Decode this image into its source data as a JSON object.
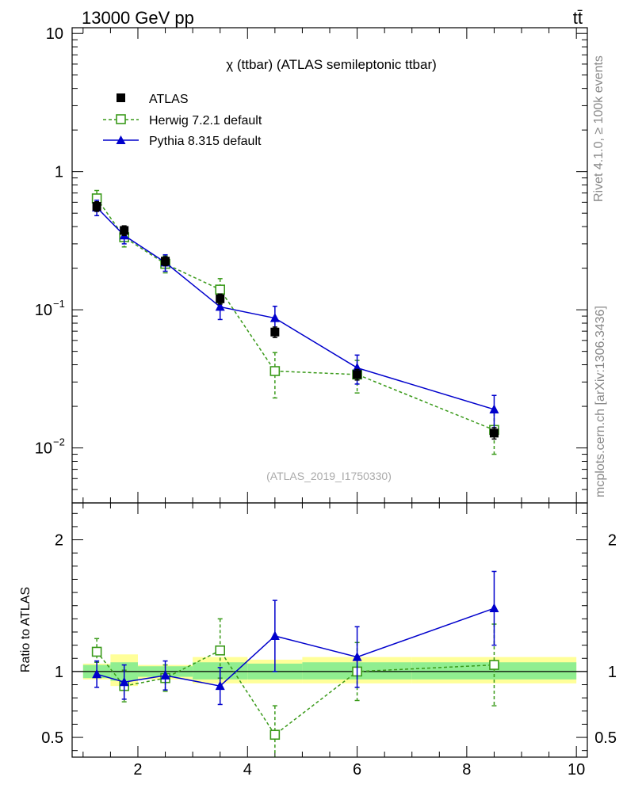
{
  "header": {
    "energy_label": "13000 GeV pp",
    "process_label": "tt̄"
  },
  "side_labels": {
    "rivet": "Rivet 4.1.0, ≥ 100k events",
    "mcplots": "mcplots.cern.ch [arXiv:1306.3436]"
  },
  "analysis_id": "(ATLAS_2019_I1750330)",
  "colors": {
    "atlas": "#000000",
    "herwig": "#3a9a1a",
    "pythia": "#0000cc",
    "band_green": "#90ee90",
    "band_yellow": "#ffff99"
  },
  "chart_data": [
    {
      "type": "line",
      "title": "χ (ttbar) (ATLAS semileptonic ttbar)",
      "xlabel": "",
      "ylabel": "",
      "yscale": "log",
      "xlim": [
        0.8,
        10.2
      ],
      "ylim": [
        0.004,
        11
      ],
      "y_ticks": [
        {
          "value": 10,
          "label": "10"
        },
        {
          "value": 1,
          "label": "1"
        },
        {
          "value": 0.1,
          "label": "10",
          "exp": "−1"
        },
        {
          "value": 0.01,
          "label": "10",
          "exp": "−2"
        }
      ],
      "legend": {
        "position": "top-left",
        "entries": [
          {
            "series": "atlas",
            "label": "ATLAS"
          },
          {
            "series": "herwig",
            "label": "Herwig 7.2.1 default"
          },
          {
            "series": "pythia",
            "label": "Pythia 8.315 default"
          }
        ]
      },
      "series": [
        {
          "key": "atlas",
          "name": "ATLAS",
          "style": "markers",
          "marker": "filled-square",
          "x": [
            1.25,
            1.75,
            2.5,
            3.5,
            4.5,
            6.0,
            8.5
          ],
          "y": [
            0.56,
            0.375,
            0.225,
            0.12,
            0.069,
            0.034,
            0.0128
          ],
          "err": [
            0.045,
            0.03,
            0.017,
            0.01,
            0.006,
            0.003,
            0.0012
          ]
        },
        {
          "key": "herwig",
          "name": "Herwig 7.2.1 default",
          "style": "dashed",
          "marker": "open-square",
          "x": [
            1.25,
            1.75,
            2.5,
            3.5,
            4.5,
            6.0,
            8.5
          ],
          "y": [
            0.64,
            0.335,
            0.215,
            0.14,
            0.036,
            0.034,
            0.0135
          ],
          "err": [
            0.09,
            0.05,
            0.03,
            0.028,
            0.013,
            0.009,
            0.0045
          ]
        },
        {
          "key": "pythia",
          "name": "Pythia 8.315 default",
          "style": "solid",
          "marker": "filled-triangle",
          "x": [
            1.25,
            1.75,
            2.5,
            3.5,
            4.5,
            6.0,
            8.5
          ],
          "y": [
            0.55,
            0.345,
            0.22,
            0.105,
            0.087,
            0.038,
            0.019
          ],
          "err": [
            0.07,
            0.045,
            0.03,
            0.02,
            0.019,
            0.009,
            0.005
          ]
        }
      ]
    },
    {
      "type": "line",
      "title": "",
      "xlabel": "",
      "ylabel": "Ratio to ATLAS",
      "xlim": [
        0.8,
        10.2
      ],
      "ylim": [
        0.35,
        2.28
      ],
      "x_ticks": [
        2,
        4,
        6,
        8,
        10
      ],
      "y_ticks": [
        {
          "value": 2,
          "label": "2"
        },
        {
          "value": 1,
          "label": "1"
        },
        {
          "value": 0.5,
          "label": "0.5"
        }
      ],
      "reference_line": 1,
      "bands": [
        {
          "x0": 1.0,
          "x1": 1.5,
          "yellow": [
            0.94,
            1.06
          ],
          "green": [
            0.95,
            1.05
          ]
        },
        {
          "x0": 1.5,
          "x1": 2.0,
          "yellow": [
            0.89,
            1.13
          ],
          "green": [
            0.93,
            1.07
          ]
        },
        {
          "x0": 2.0,
          "x1": 3.0,
          "yellow": [
            0.94,
            1.05
          ],
          "green": [
            0.96,
            1.04
          ]
        },
        {
          "x0": 3.0,
          "x1": 4.0,
          "yellow": [
            0.91,
            1.11
          ],
          "green": [
            0.94,
            1.07
          ]
        },
        {
          "x0": 4.0,
          "x1": 5.0,
          "yellow": [
            0.91,
            1.09
          ],
          "green": [
            0.94,
            1.06
          ]
        },
        {
          "x0": 5.0,
          "x1": 7.0,
          "yellow": [
            0.91,
            1.11
          ],
          "green": [
            0.94,
            1.07
          ]
        },
        {
          "x0": 7.0,
          "x1": 10.0,
          "yellow": [
            0.91,
            1.11
          ],
          "green": [
            0.94,
            1.07
          ]
        }
      ],
      "series": [
        {
          "key": "herwig",
          "name": "Herwig 7.2.1 default",
          "style": "dashed",
          "marker": "open-square",
          "x": [
            1.25,
            1.75,
            2.5,
            3.5,
            4.5,
            6.0,
            8.5
          ],
          "y": [
            1.15,
            0.89,
            0.95,
            1.16,
            0.52,
            1.0,
            1.05
          ],
          "lo": [
            1.07,
            0.77,
            0.85,
            0.95,
            0.31,
            0.78,
            0.74
          ],
          "hi": [
            1.25,
            1.01,
            1.05,
            1.4,
            0.74,
            1.22,
            1.36
          ]
        },
        {
          "key": "pythia",
          "name": "Pythia 8.315 default",
          "style": "solid",
          "marker": "filled-triangle",
          "x": [
            1.25,
            1.75,
            2.5,
            3.5,
            4.5,
            6.0,
            8.5
          ],
          "y": [
            0.98,
            0.92,
            0.97,
            0.89,
            1.27,
            1.11,
            1.48
          ],
          "lo": [
            0.88,
            0.79,
            0.86,
            0.75,
            1.0,
            0.88,
            1.2
          ],
          "hi": [
            1.08,
            1.05,
            1.08,
            1.03,
            1.54,
            1.34,
            1.76
          ]
        }
      ]
    }
  ]
}
